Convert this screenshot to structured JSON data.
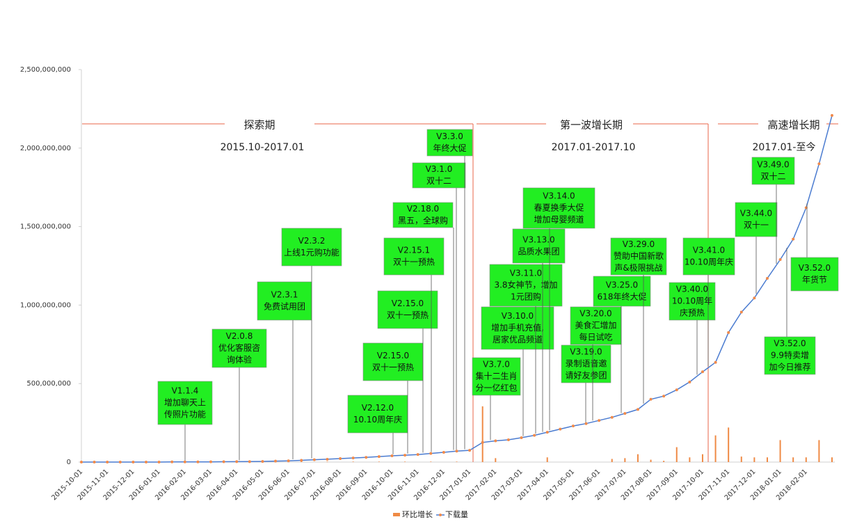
{
  "chart_data": {
    "type": "line",
    "categories": [
      "2015-10-01",
      null,
      "2015-11-01",
      null,
      "2015-12-01",
      null,
      "2016-01-01",
      null,
      "2016-02-01",
      null,
      "2016-03-01",
      null,
      "2016-04-01",
      null,
      "2016-05-01",
      null,
      "2016-06-01",
      null,
      "2016-07-01",
      null,
      "2016-08-01",
      null,
      "2016-09-01",
      null,
      "2016-10-01",
      null,
      "2016-11-01",
      null,
      "2016-12-01",
      null,
      "2017-01-01",
      null,
      "2017-02-01",
      null,
      "2017-03-01",
      null,
      "2017-04-01",
      null,
      "2017-05-01",
      null,
      "2017-06-01",
      null,
      "2017-07-01",
      null,
      "2017-08-01",
      null,
      "2017-09-01",
      null,
      "2017-10-01",
      null,
      "2017-11-01",
      null,
      "2017-12-01",
      null,
      "2018-01-01",
      null,
      "2018-02-01",
      null,
      null
    ],
    "series": [
      {
        "name": "环比增长",
        "type": "bar",
        "color": "#ef8a45",
        "values": [
          0,
          2000000,
          0,
          2000000,
          0,
          2000000,
          0,
          2000000,
          0,
          2000000,
          0,
          2000000,
          0,
          2000000,
          0,
          3000000,
          0,
          3000000,
          0,
          3000000,
          0,
          3000000,
          0,
          3000000,
          0,
          3000000,
          0,
          3000000,
          0,
          3000000,
          0,
          355000000,
          25000000,
          0,
          0,
          0,
          30000000,
          0,
          0,
          0,
          0,
          20000000,
          25000000,
          50000000,
          15000000,
          8000000,
          95000000,
          30000000,
          50000000,
          170000000,
          220000000,
          35000000,
          30000000,
          30000000,
          140000000,
          30000000,
          30000000,
          140000000,
          30000000
        ]
      },
      {
        "name": "下载量",
        "type": "line",
        "color": "#4a7bd0",
        "marker_color": "#f08a4b",
        "values": [
          0,
          0,
          0,
          0,
          0,
          0,
          0,
          1000000,
          1000000,
          1000000,
          1500000,
          2000000,
          2500000,
          3000000,
          4000000,
          6000000,
          8000000,
          11000000,
          15000000,
          18000000,
          22000000,
          26000000,
          30000000,
          35000000,
          40000000,
          44000000,
          48000000,
          55000000,
          62000000,
          70000000,
          75000000,
          125000000,
          135000000,
          142000000,
          155000000,
          170000000,
          190000000,
          210000000,
          230000000,
          245000000,
          265000000,
          285000000,
          310000000,
          335000000,
          400000000,
          420000000,
          460000000,
          510000000,
          575000000,
          635000000,
          825000000,
          955000000,
          1045000000,
          1170000000,
          1290000000,
          1420000000,
          1620000000,
          1900000000,
          2208000000
        ]
      }
    ],
    "ylim": [
      0,
      2500000000
    ],
    "yticks": [
      0,
      {
        "value": 500000000,
        "label": "500,000,000"
      },
      {
        "value": 1000000000,
        "label": "1,000,000,000"
      },
      {
        "value": 1500000000,
        "label": "1,500,000,000"
      },
      {
        "value": 2000000000,
        "label": "2,000,000,000"
      },
      {
        "value": 2500000000,
        "label": "2,500,000,000"
      }
    ],
    "grid": false,
    "legend": "bottom",
    "phases": [
      {
        "name": "探索期",
        "period": "2015.10-2017.01"
      },
      {
        "name": "第一波增长期",
        "period": "2017.01-2017.10"
      },
      {
        "name": "高速增长期",
        "period": "2017.01-至今"
      }
    ],
    "annotations": [
      {
        "lines": [
          "V1.1.4",
          "增加聊天上",
          "传照片功能"
        ]
      },
      {
        "lines": [
          "V2.0.8",
          "优化客服咨",
          "询体验"
        ]
      },
      {
        "lines": [
          "V2.3.1",
          "免费试用团"
        ]
      },
      {
        "lines": [
          "V2.3.2",
          "上线1元购功能"
        ]
      },
      {
        "lines": [
          "V2.12.0",
          "10.10周年庆"
        ]
      },
      {
        "lines": [
          "V2.15.0",
          "双十一预热"
        ]
      },
      {
        "lines": [
          "V2.15.0",
          "双十一预热"
        ]
      },
      {
        "lines": [
          "V2.15.1",
          "双十一预热"
        ]
      },
      {
        "lines": [
          "V2.18.0",
          "黑五，全球购"
        ]
      },
      {
        "lines": [
          "V3.1.0",
          "双十二"
        ]
      },
      {
        "lines": [
          "V3.3.0",
          "年终大促"
        ]
      },
      {
        "lines": [
          "V3.7.0",
          "集十二生肖",
          "分一亿红包"
        ]
      },
      {
        "lines": [
          "V3.10.0",
          "增加手机充值,",
          "居家优品频道"
        ]
      },
      {
        "lines": [
          "V3.11.0",
          "3.8女神节，增加",
          "1元团购"
        ]
      },
      {
        "lines": [
          "V3.13.0",
          "品质水果团"
        ]
      },
      {
        "lines": [
          "V3.14.0",
          "春夏换季大促",
          "增加母婴频道"
        ]
      },
      {
        "lines": [
          "V3.19.0",
          "录制语音邀",
          "请好友参团"
        ]
      },
      {
        "lines": [
          "V3.20.0",
          "美食汇增加",
          "每日试吃"
        ]
      },
      {
        "lines": [
          "V3.25.0",
          "618年终大促"
        ]
      },
      {
        "lines": [
          "V3.29.0",
          "赞助中国新歌",
          "声&极限挑战"
        ]
      },
      {
        "lines": [
          "V3.40.0",
          "10.10周年",
          "庆预热"
        ]
      },
      {
        "lines": [
          "V3.41.0",
          "10.10周年庆"
        ]
      },
      {
        "lines": [
          "V3.44.0",
          "双十一"
        ]
      },
      {
        "lines": [
          "V3.49.0",
          "双十二"
        ]
      },
      {
        "lines": [
          "V3.52.0",
          "9.9特卖增",
          "加今日推荐"
        ]
      },
      {
        "lines": [
          "V3.52.0",
          "年货节"
        ]
      }
    ]
  }
}
